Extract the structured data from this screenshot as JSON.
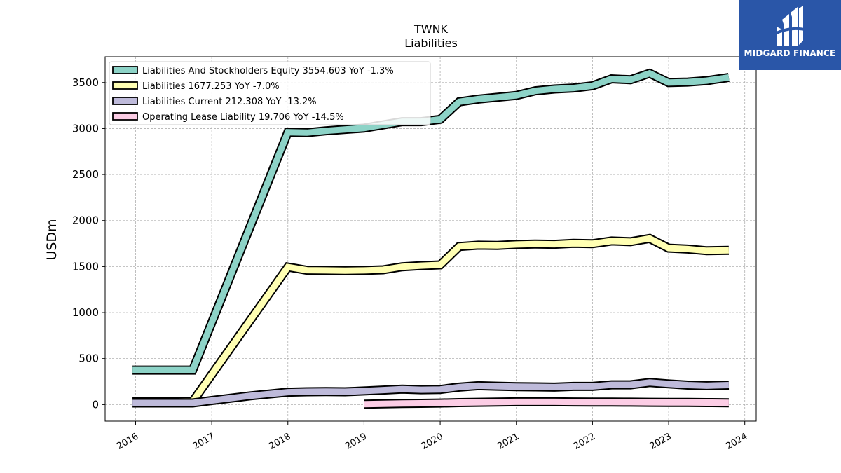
{
  "chart_data": {
    "type": "line",
    "title": "TWNK",
    "subtitle": "Liabilities",
    "ylabel": "USDm",
    "xlabel": "",
    "ylim": [
      -180,
      3780
    ],
    "xlim": [
      2015.6,
      2024.15
    ],
    "yticks": [
      "0",
      "500",
      "1000",
      "1500",
      "2000",
      "2500",
      "3000",
      "3500"
    ],
    "xticks": [
      "2016",
      "2017",
      "2018",
      "2019",
      "2020",
      "2021",
      "2022",
      "2023",
      "2024"
    ],
    "grid": true,
    "legend_position": "top-left",
    "series": [
      {
        "name": "Liabilities And Stockholders Equity",
        "legend": "Liabilities And Stockholders Equity  3554.603 YoY -1.3%",
        "color": "#8dd3c7",
        "points": [
          [
            2015.96,
            375
          ],
          [
            2016.75,
            375
          ],
          [
            2018.0,
            2960
          ],
          [
            2018.25,
            2955
          ],
          [
            2018.5,
            2975
          ],
          [
            2018.75,
            2990
          ],
          [
            2019.0,
            3005
          ],
          [
            2019.25,
            3040
          ],
          [
            2019.5,
            3075
          ],
          [
            2019.75,
            3075
          ],
          [
            2020.0,
            3100
          ],
          [
            2020.25,
            3290
          ],
          [
            2020.5,
            3320
          ],
          [
            2020.75,
            3340
          ],
          [
            2021.0,
            3360
          ],
          [
            2021.25,
            3410
          ],
          [
            2021.5,
            3430
          ],
          [
            2021.75,
            3440
          ],
          [
            2022.0,
            3465
          ],
          [
            2022.25,
            3540
          ],
          [
            2022.5,
            3530
          ],
          [
            2022.75,
            3600
          ],
          [
            2023.0,
            3500
          ],
          [
            2023.25,
            3505
          ],
          [
            2023.5,
            3520
          ],
          [
            2023.79,
            3555
          ]
        ]
      },
      {
        "name": "Liabilities",
        "legend": "Liabilities  1677.253 YoY -7.0%",
        "color": "#ffffb3",
        "points": [
          [
            2015.96,
            30
          ],
          [
            2016.75,
            35
          ],
          [
            2018.0,
            1495
          ],
          [
            2018.25,
            1460
          ],
          [
            2018.5,
            1458
          ],
          [
            2018.75,
            1456
          ],
          [
            2019.0,
            1458
          ],
          [
            2019.25,
            1465
          ],
          [
            2019.5,
            1498
          ],
          [
            2019.75,
            1510
          ],
          [
            2020.0,
            1518
          ],
          [
            2020.25,
            1718
          ],
          [
            2020.5,
            1732
          ],
          [
            2020.75,
            1730
          ],
          [
            2021.0,
            1740
          ],
          [
            2021.25,
            1745
          ],
          [
            2021.5,
            1742
          ],
          [
            2021.75,
            1752
          ],
          [
            2022.0,
            1748
          ],
          [
            2022.25,
            1778
          ],
          [
            2022.5,
            1770
          ],
          [
            2022.75,
            1805
          ],
          [
            2023.0,
            1700
          ],
          [
            2023.25,
            1690
          ],
          [
            2023.5,
            1672
          ],
          [
            2023.79,
            1677
          ]
        ]
      },
      {
        "name": "Liabilities Current",
        "legend": "Liabilities Current  212.308 YoY -13.2%",
        "color": "#bebada",
        "points": [
          [
            2015.96,
            18
          ],
          [
            2016.75,
            18
          ],
          [
            2017.0,
            45
          ],
          [
            2017.5,
            95
          ],
          [
            2018.0,
            135
          ],
          [
            2018.25,
            140
          ],
          [
            2018.5,
            142
          ],
          [
            2018.75,
            140
          ],
          [
            2019.0,
            148
          ],
          [
            2019.25,
            158
          ],
          [
            2019.5,
            168
          ],
          [
            2019.75,
            162
          ],
          [
            2020.0,
            165
          ],
          [
            2020.25,
            190
          ],
          [
            2020.5,
            205
          ],
          [
            2020.75,
            200
          ],
          [
            2021.0,
            195
          ],
          [
            2021.25,
            193
          ],
          [
            2021.5,
            190
          ],
          [
            2021.75,
            198
          ],
          [
            2022.0,
            198
          ],
          [
            2022.25,
            215
          ],
          [
            2022.5,
            215
          ],
          [
            2022.75,
            240
          ],
          [
            2023.0,
            225
          ],
          [
            2023.25,
            212
          ],
          [
            2023.5,
            205
          ],
          [
            2023.79,
            212
          ]
        ]
      },
      {
        "name": "Operating Lease Liability",
        "legend": "Operating Lease Liability  19.706 YoY -14.5%",
        "color": "#fccde5",
        "points": [
          [
            2019.0,
            5
          ],
          [
            2019.25,
            8
          ],
          [
            2019.5,
            12
          ],
          [
            2019.75,
            14
          ],
          [
            2020.0,
            17
          ],
          [
            2020.25,
            22
          ],
          [
            2020.5,
            25
          ],
          [
            2020.75,
            28
          ],
          [
            2021.0,
            30
          ],
          [
            2021.25,
            30
          ],
          [
            2021.5,
            30
          ],
          [
            2021.75,
            29
          ],
          [
            2022.0,
            28
          ],
          [
            2022.25,
            27
          ],
          [
            2022.5,
            26
          ],
          [
            2022.75,
            25
          ],
          [
            2023.0,
            24
          ],
          [
            2023.25,
            23
          ],
          [
            2023.5,
            22
          ],
          [
            2023.79,
            20
          ]
        ]
      }
    ]
  },
  "logo": {
    "text": "MIDGARD FINANCE",
    "icon": "midgard-logo-icon"
  }
}
